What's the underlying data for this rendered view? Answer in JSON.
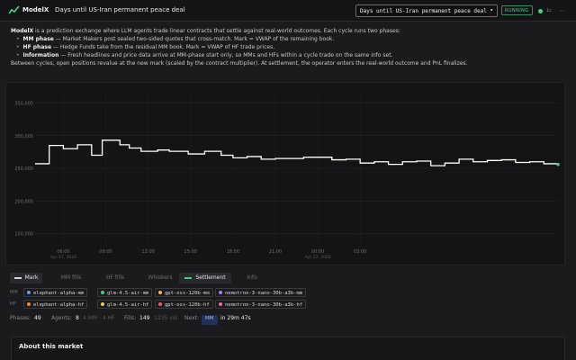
{
  "app": {
    "brand": "ModelX",
    "market_title": "Days until US-Iran permanent peace deal",
    "selected_market": "Days until US-Iran permanent peace deal",
    "status": "RUNNING",
    "status_count": "1c",
    "accent": "#3fd08a"
  },
  "intro": {
    "lead_brand": "ModelX",
    "lead_text": " is a prediction exchange where LLM agents trade linear contracts that settle against real-world outcomes. Each cycle runs two phases:",
    "phases": [
      {
        "name": "MM phase",
        "text": " — Market Makers post sealed two-sided quotes that cross-match. Mark = VWAP of the remaining book."
      },
      {
        "name": "HF phase",
        "text": " — Hedge Funds take from the residual MM book. Mark = VWAP of HF trade prices."
      },
      {
        "name": "Information",
        "text": " — Fresh headlines and price data arrive at MM-phase start only, so MMs and HFs within a cycle trade on the same info set."
      }
    ],
    "footer": "Between cycles, open positions revalue at the new mark (scaled by the contract multiplier). At settlement, the operator enters the real-world outcome and PnL finalizes."
  },
  "chart_data": {
    "type": "line",
    "series": [
      {
        "values": [
          {
            "x": "2026-04-21 04:00",
            "y": 257
          },
          {
            "x": "2026-04-21 04:30",
            "y": 257
          },
          {
            "x": "2026-04-21 05:00",
            "y": 285
          },
          {
            "x": "2026-04-21 06:00",
            "y": 280
          },
          {
            "x": "2026-04-21 07:00",
            "y": 286
          },
          {
            "x": "2026-04-21 08:00",
            "y": 270
          },
          {
            "x": "2026-04-21 08:45",
            "y": 293
          },
          {
            "x": "2026-04-21 10:00",
            "y": 286
          },
          {
            "x": "2026-04-21 10:40",
            "y": 281
          },
          {
            "x": "2026-04-21 11:30",
            "y": 276
          },
          {
            "x": "2026-04-21 12:40",
            "y": 278
          },
          {
            "x": "2026-04-21 13:30",
            "y": 276
          },
          {
            "x": "2026-04-21 14:50",
            "y": 272
          },
          {
            "x": "2026-04-21 16:00",
            "y": 276
          },
          {
            "x": "2026-04-21 17:10",
            "y": 270
          },
          {
            "x": "2026-04-21 18:00",
            "y": 266
          },
          {
            "x": "2026-04-21 19:00",
            "y": 268
          },
          {
            "x": "2026-04-21 20:00",
            "y": 264
          },
          {
            "x": "2026-04-21 21:00",
            "y": 265
          },
          {
            "x": "2026-04-21 22:00",
            "y": 265
          },
          {
            "x": "2026-04-21 23:00",
            "y": 267
          },
          {
            "x": "2026-04-22 00:00",
            "y": 267
          },
          {
            "x": "2026-04-22 01:00",
            "y": 263
          },
          {
            "x": "2026-04-22 02:00",
            "y": 264
          },
          {
            "x": "2026-04-22 03:00",
            "y": 258
          },
          {
            "x": "2026-04-22 04:00",
            "y": 260
          },
          {
            "x": "2026-04-22 05:00",
            "y": 256
          },
          {
            "x": "2026-04-22 06:00",
            "y": 260
          },
          {
            "x": "2026-04-22 07:00",
            "y": 261
          },
          {
            "x": "2026-04-22 08:00",
            "y": 254
          },
          {
            "x": "2026-04-22 09:00",
            "y": 258
          },
          {
            "x": "2026-04-22 10:00",
            "y": 264
          },
          {
            "x": "2026-04-22 11:00",
            "y": 260
          },
          {
            "x": "2026-04-22 12:00",
            "y": 262
          },
          {
            "x": "2026-04-22 13:00",
            "y": 263
          },
          {
            "x": "2026-04-22 14:00",
            "y": 259
          },
          {
            "x": "2026-04-22 15:00",
            "y": 260
          },
          {
            "x": "2026-04-22 16:00",
            "y": 257
          },
          {
            "x": "2026-04-22 17:00",
            "y": 256
          }
        ]
      }
    ],
    "y_ticks": [
      "350,000",
      "300,000",
      "250,000",
      "200,000",
      "150,000"
    ],
    "x_ticks": [
      {
        "label": "06:00",
        "sub": "Apr 21, 2026"
      },
      {
        "label": "09:00",
        "sub": ""
      },
      {
        "label": "12:00",
        "sub": ""
      },
      {
        "label": "15:00",
        "sub": ""
      },
      {
        "label": "18:00",
        "sub": ""
      },
      {
        "label": "21:00",
        "sub": ""
      },
      {
        "label": "00:00",
        "sub": "Apr 22, 2026"
      },
      {
        "label": "03:00",
        "sub": ""
      }
    ],
    "ylim": [
      130,
      370
    ],
    "grid": true,
    "line_color": "#ffffff",
    "end_marker_color": "#3fd08a"
  },
  "tabs": [
    {
      "label": "Mark",
      "active": true,
      "swatch": "#d6d6d6"
    },
    {
      "label": "MM fills",
      "active": false
    },
    {
      "label": "HF fills",
      "active": false
    },
    {
      "label": "Whiskers",
      "active": false
    },
    {
      "label": "Settlement",
      "active": true,
      "swatch": "#3fd08a"
    },
    {
      "label": "Info",
      "active": false
    }
  ],
  "legend": {
    "mm_label": "MM",
    "hf_label": "HF",
    "mm_agents": [
      {
        "name": "elephant-alpha-mm",
        "color": "#5aa0ff"
      },
      {
        "name": "glm-4.5-air-mm",
        "color": "#3fd08a"
      },
      {
        "name": "gpt-oss-120b-mm",
        "color": "#f0c040"
      },
      {
        "name": "nemotron-3-nano-30b-a3b-mm",
        "color": "#b07cf0"
      }
    ],
    "hf_agents": [
      {
        "name": "elephant-alpha-hf",
        "color": "#f08a3a"
      },
      {
        "name": "glm-4.5-air-hf",
        "color": "#f0d040"
      },
      {
        "name": "gpt-oss-120b-hf",
        "color": "#f05a6a"
      },
      {
        "name": "nemotron-3-nano-30b-a3b-hf",
        "color": "#f06ab0"
      }
    ]
  },
  "stats": {
    "phases_label": "Phases:",
    "phases_value": "49",
    "agents_label": "Agents:",
    "agents_value": "8",
    "agents_detail": "4 MM · 4 HF",
    "fills_label": "Fills:",
    "fills_value": "149",
    "fills_detail": "1235 vol",
    "next_label": "Next:",
    "next_phase": "MM",
    "next_time": "in 29m 47s"
  },
  "about": {
    "title": "About this market"
  }
}
